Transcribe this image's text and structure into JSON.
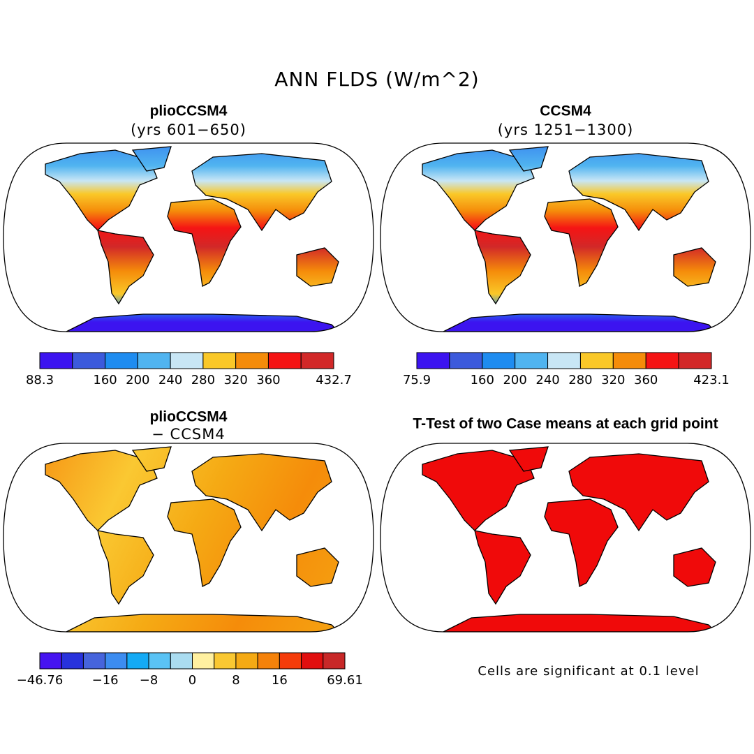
{
  "title": "ANN FLDS (W/m^2)",
  "panels": [
    {
      "title": "plioCCSM4",
      "subtitle": "(yrs 601−650)",
      "colorbar": {
        "colors": [
          "#3c14f0",
          "#3c5adc",
          "#1e8cf0",
          "#50b4f0",
          "#c8e6f5",
          "#fac828",
          "#f58c0a",
          "#f51414",
          "#d22828"
        ],
        "labels": [
          "88.3",
          null,
          "160",
          "200",
          "240",
          "280",
          "320",
          "360",
          null,
          "432.7"
        ]
      }
    },
    {
      "title": "CCSM4",
      "subtitle": "(yrs 1251−1300)",
      "colorbar": {
        "colors": [
          "#3c14f0",
          "#3c5adc",
          "#1e8cf0",
          "#50b4f0",
          "#c8e6f5",
          "#fac828",
          "#f58c0a",
          "#f51414",
          "#d22828"
        ],
        "labels": [
          "75.9",
          null,
          "160",
          "200",
          "240",
          "280",
          "320",
          "360",
          null,
          "423.1"
        ]
      }
    },
    {
      "title": "plioCCSM4",
      "subtitle": "− CCSM4",
      "colorbar": {
        "colors": [
          "#4614f0",
          "#2832dc",
          "#4664dc",
          "#3c8cf0",
          "#14aaf5",
          "#5ac3f5",
          "#aadcf0",
          "#fff0a0",
          "#fac832",
          "#f5aa14",
          "#f5820a",
          "#f53c0a",
          "#e10f0f",
          "#c82828"
        ],
        "labels": [
          "−46.76",
          null,
          null,
          "−16",
          null,
          "−8",
          null,
          "0",
          null,
          "8",
          null,
          "16",
          null,
          null,
          "69.61"
        ]
      }
    },
    {
      "title": "T-Test of two Case means at each grid point",
      "note": "Cells are significant at 0.1 level"
    }
  ]
}
